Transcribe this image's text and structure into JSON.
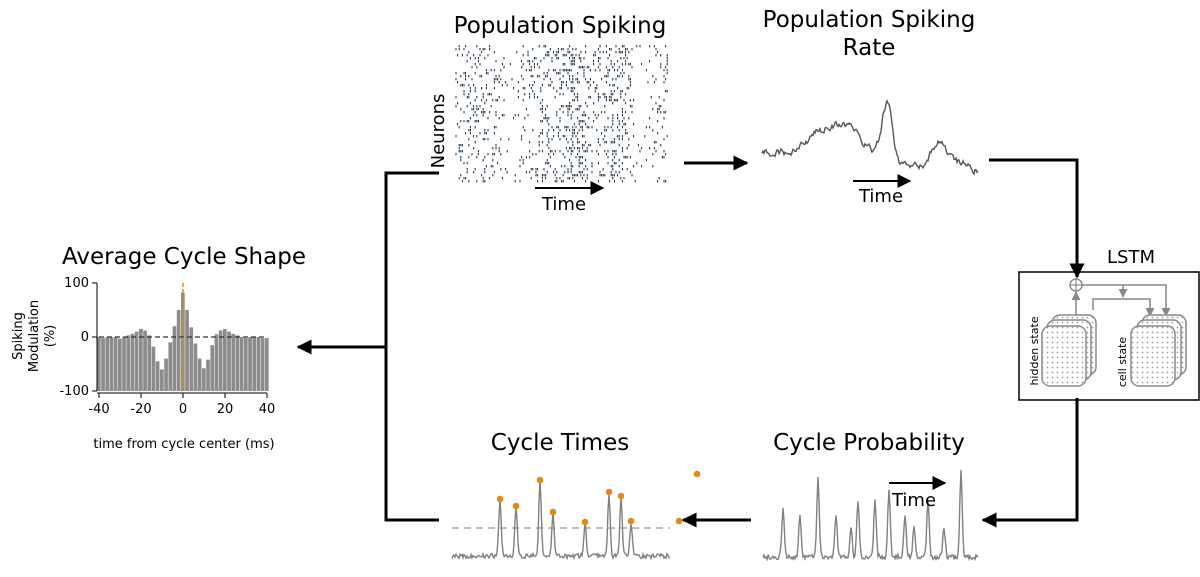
{
  "panels": {
    "raster": {
      "title": "Population Spiking",
      "ylabel": "Neurons",
      "xlabel": "Time"
    },
    "rate": {
      "title_line1": "Population Spiking",
      "title_line2": "Rate",
      "xlabel": "Time"
    },
    "lstm": {
      "title": "LSTM",
      "hidden_label": "hidden state",
      "cell_label": "cell state"
    },
    "probability": {
      "title": "Cycle Probability",
      "xlabel": "Time"
    },
    "cycle_times": {
      "title": "Cycle Times"
    },
    "average": {
      "title": "Average Cycle Shape"
    }
  },
  "chart_data": {
    "type": "bar",
    "title": "Average Cycle Shape",
    "ylabel_lines": [
      "Spiking",
      "Modulation",
      "(%)"
    ],
    "xlabel": "time from cycle center (ms)",
    "x_ticks": [
      "-40",
      "-20",
      "0",
      "20",
      "40"
    ],
    "y_ticks": [
      "100",
      "0",
      "-100"
    ],
    "xlim": [
      -40,
      40
    ],
    "ylim": [
      -100,
      100
    ],
    "reference_line_y": 0,
    "center_marker_x": 0,
    "colors": {
      "bars": "#8c8c8c",
      "center": "#e08a1e",
      "reference": "#333333"
    },
    "x": [
      -40,
      -38,
      -36,
      -34,
      -32,
      -30,
      -28,
      -26,
      -24,
      -22,
      -20,
      -18,
      -16,
      -14,
      -12,
      -10,
      -8,
      -6,
      -4,
      -2,
      0,
      2,
      4,
      6,
      8,
      10,
      12,
      14,
      16,
      18,
      20,
      22,
      24,
      26,
      28,
      30,
      32,
      34,
      36,
      38,
      40
    ],
    "values": [
      0,
      -2,
      0,
      -1,
      0,
      -3,
      0,
      3,
      6,
      10,
      15,
      12,
      3,
      -18,
      -45,
      -60,
      -40,
      -10,
      20,
      50,
      82,
      50,
      18,
      -12,
      -40,
      -58,
      -42,
      -15,
      5,
      12,
      15,
      10,
      6,
      3,
      0,
      -2,
      0,
      -1,
      0,
      -2,
      -2
    ]
  },
  "signals": {
    "cycle_times_markers": [
      26,
      42,
      66,
      79,
      111,
      135,
      147,
      157,
      205,
      223
    ],
    "colors": {
      "trace": "#808080",
      "marker": "#e08a1e",
      "threshold": "#a8a8a8"
    }
  }
}
